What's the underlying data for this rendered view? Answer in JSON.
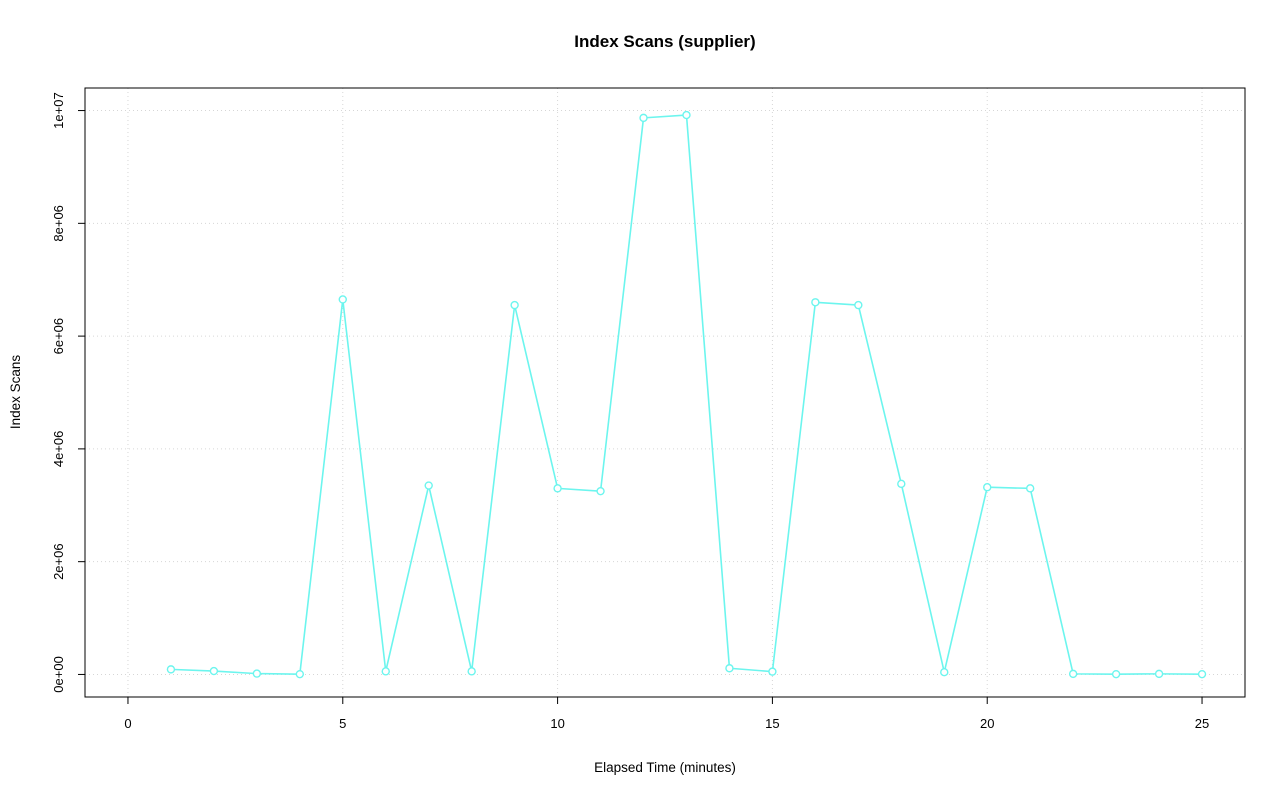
{
  "chart_data": {
    "type": "line",
    "title": "Index Scans (supplier)",
    "xlabel": "Elapsed Time (minutes)",
    "ylabel": "Index Scans",
    "x": [
      1,
      2,
      3,
      4,
      5,
      6,
      7,
      8,
      9,
      10,
      11,
      12,
      13,
      14,
      15,
      16,
      17,
      18,
      19,
      20,
      21,
      22,
      23,
      24,
      25
    ],
    "y": [
      90000,
      60000,
      15000,
      5000,
      6650000,
      55000,
      3350000,
      55000,
      6550000,
      3300000,
      3250000,
      9870000,
      9920000,
      110000,
      50000,
      6600000,
      6550000,
      3380000,
      40000,
      3320000,
      3300000,
      10000,
      5000,
      10000,
      5000
    ],
    "xlim": [
      -1,
      26
    ],
    "ylim": [
      -400000,
      10400000
    ],
    "xticks": [
      {
        "value": 0,
        "label": "0"
      },
      {
        "value": 5,
        "label": "5"
      },
      {
        "value": 10,
        "label": "10"
      },
      {
        "value": 15,
        "label": "15"
      },
      {
        "value": 20,
        "label": "20"
      },
      {
        "value": 25,
        "label": "25"
      }
    ],
    "yticks": [
      {
        "value": 0,
        "label": "0e+00"
      },
      {
        "value": 2000000,
        "label": "2e+06"
      },
      {
        "value": 4000000,
        "label": "4e+06"
      },
      {
        "value": 6000000,
        "label": "6e+06"
      },
      {
        "value": 8000000,
        "label": "8e+06"
      },
      {
        "value": 10000000,
        "label": "1e+07"
      }
    ],
    "grid": true,
    "legend": "none",
    "marker": "open-circle",
    "line_color": "#6CF5EE",
    "grid_color": "#D6D6D6",
    "axis_color": "#000000",
    "background_color": "#FFFFFF"
  }
}
